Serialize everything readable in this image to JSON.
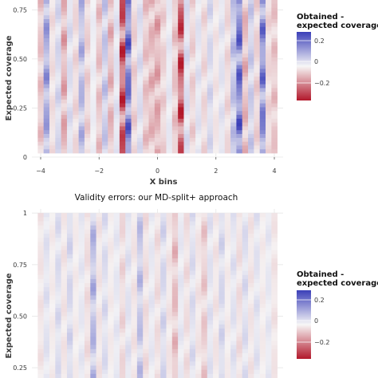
{
  "colors": {
    "negative": "#b2182b",
    "neutral": "#f7f7f7",
    "positive": "#3b3fb8"
  },
  "chart_data": [
    {
      "type": "heatmap",
      "title": "",
      "xlabel": "X bins",
      "ylabel": "Expected coverage",
      "xlim": [
        -4.3,
        4.3
      ],
      "ylim": [
        0,
        0.8
      ],
      "x_ticks": [
        -4,
        -2,
        0,
        2,
        4
      ],
      "y_ticks": [
        0,
        0.25,
        0.5,
        0.75
      ],
      "x_tick_labels": [
        "−4",
        "−2",
        "0",
        "2",
        "4"
      ],
      "y_tick_labels": [
        "0",
        "0.25",
        "0.50",
        "0.75"
      ],
      "legend": {
        "title_lines": [
          "Obtained -",
          "expected coverage"
        ],
        "ticks": [
          0.2,
          0,
          -0.2
        ],
        "tick_labels": [
          "0.2",
          "0",
          "−0.2"
        ],
        "range": [
          -0.3,
          0.3
        ],
        "placement": "right"
      },
      "columns": [
        {
          "x": -4.0,
          "value": -0.08
        },
        {
          "x": -3.8,
          "value": 0.16
        },
        {
          "x": -3.6,
          "value": -0.04
        },
        {
          "x": -3.4,
          "value": 0.06
        },
        {
          "x": -3.2,
          "value": -0.12
        },
        {
          "x": -3.0,
          "value": 0.05
        },
        {
          "x": -2.8,
          "value": -0.05
        },
        {
          "x": -2.6,
          "value": 0.12
        },
        {
          "x": -2.4,
          "value": -0.06
        },
        {
          "x": -2.2,
          "value": 0.02
        },
        {
          "x": -2.0,
          "value": -0.08
        },
        {
          "x": -1.8,
          "value": 0.09
        },
        {
          "x": -1.6,
          "value": -0.1
        },
        {
          "x": -1.4,
          "value": 0.04
        },
        {
          "x": -1.2,
          "value": -0.26
        },
        {
          "x": -1.0,
          "value": 0.24
        },
        {
          "x": -0.8,
          "value": -0.06
        },
        {
          "x": -0.6,
          "value": 0.05
        },
        {
          "x": -0.4,
          "value": -0.08
        },
        {
          "x": -0.2,
          "value": -0.1
        },
        {
          "x": 0.0,
          "value": -0.12
        },
        {
          "x": 0.2,
          "value": -0.06
        },
        {
          "x": 0.4,
          "value": 0.03
        },
        {
          "x": 0.6,
          "value": -0.08
        },
        {
          "x": 0.8,
          "value": -0.27
        },
        {
          "x": 1.0,
          "value": 0.05
        },
        {
          "x": 1.2,
          "value": -0.06
        },
        {
          "x": 1.4,
          "value": 0.04
        },
        {
          "x": 1.6,
          "value": -0.05
        },
        {
          "x": 1.8,
          "value": 0.06
        },
        {
          "x": 2.0,
          "value": -0.03
        },
        {
          "x": 2.2,
          "value": 0.04
        },
        {
          "x": 2.4,
          "value": -0.05
        },
        {
          "x": 2.6,
          "value": 0.1
        },
        {
          "x": 2.8,
          "value": 0.25
        },
        {
          "x": 3.0,
          "value": -0.1
        },
        {
          "x": 3.2,
          "value": 0.08
        },
        {
          "x": 3.4,
          "value": -0.06
        },
        {
          "x": 3.6,
          "value": 0.22
        },
        {
          "x": 3.8,
          "value": -0.05
        },
        {
          "x": 4.0,
          "value": -0.08
        }
      ]
    },
    {
      "type": "heatmap",
      "title": "Validity errors: our MD-split+ approach",
      "xlabel": "",
      "ylabel": "Expected coverage",
      "xlim": [
        -4.3,
        4.3
      ],
      "ylim": [
        0.2,
        1.02
      ],
      "y_ticks": [
        0.25,
        0.5,
        0.75,
        1
      ],
      "y_tick_labels": [
        "0.25",
        "0.50",
        "0.75",
        "1"
      ],
      "legend": {
        "title_lines": [
          "Obtained -",
          "expected coverage"
        ],
        "ticks": [
          0.2,
          0,
          -0.2
        ],
        "tick_labels": [
          "0.2",
          "0",
          "−0.2"
        ],
        "range": [
          -0.3,
          0.3
        ],
        "placement": "right"
      },
      "columns": [
        {
          "x": -4.0,
          "value": -0.03
        },
        {
          "x": -3.8,
          "value": 0.04
        },
        {
          "x": -3.6,
          "value": -0.02
        },
        {
          "x": -3.4,
          "value": 0.05
        },
        {
          "x": -3.2,
          "value": -0.03
        },
        {
          "x": -3.0,
          "value": 0.06
        },
        {
          "x": -2.8,
          "value": -0.02
        },
        {
          "x": -2.6,
          "value": 0.03
        },
        {
          "x": -2.4,
          "value": -0.04
        },
        {
          "x": -2.2,
          "value": 0.12
        },
        {
          "x": -2.0,
          "value": -0.03
        },
        {
          "x": -1.8,
          "value": 0.05
        },
        {
          "x": -1.6,
          "value": -0.02
        },
        {
          "x": -1.4,
          "value": 0.03
        },
        {
          "x": -1.2,
          "value": -0.05
        },
        {
          "x": -1.0,
          "value": 0.04
        },
        {
          "x": -0.8,
          "value": -0.03
        },
        {
          "x": -0.6,
          "value": 0.1
        },
        {
          "x": -0.4,
          "value": -0.04
        },
        {
          "x": -0.2,
          "value": 0.03
        },
        {
          "x": 0.0,
          "value": -0.04
        },
        {
          "x": 0.2,
          "value": 0.06
        },
        {
          "x": 0.4,
          "value": -0.03
        },
        {
          "x": 0.6,
          "value": -0.09
        },
        {
          "x": 0.8,
          "value": 0.03
        },
        {
          "x": 1.0,
          "value": -0.04
        },
        {
          "x": 1.2,
          "value": 0.05
        },
        {
          "x": 1.4,
          "value": -0.03
        },
        {
          "x": 1.6,
          "value": -0.07
        },
        {
          "x": 1.8,
          "value": 0.04
        },
        {
          "x": 2.0,
          "value": -0.03
        },
        {
          "x": 2.2,
          "value": 0.06
        },
        {
          "x": 2.4,
          "value": -0.02
        },
        {
          "x": 2.6,
          "value": 0.04
        },
        {
          "x": 2.8,
          "value": -0.04
        },
        {
          "x": 3.0,
          "value": 0.05
        },
        {
          "x": 3.2,
          "value": -0.03
        },
        {
          "x": 3.4,
          "value": 0.04
        },
        {
          "x": 3.6,
          "value": -0.02
        },
        {
          "x": 3.8,
          "value": 0.03
        },
        {
          "x": 4.0,
          "value": -0.03
        }
      ]
    }
  ]
}
